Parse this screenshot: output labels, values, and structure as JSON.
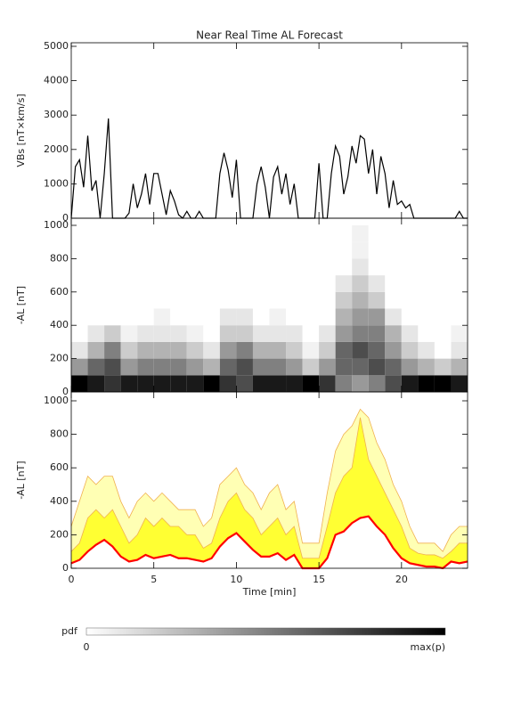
{
  "chart_data": [
    {
      "type": "line",
      "title": "Near Real Time AL Forecast",
      "ylabel": "VBs [nT×km/s]",
      "xlim": [
        0,
        24
      ],
      "xticks": [
        0,
        5,
        10,
        15,
        20
      ],
      "ylim": [
        0,
        5000
      ],
      "yticks": [
        0,
        1000,
        2000,
        3000,
        4000,
        5000
      ],
      "x": [
        0,
        0.25,
        0.5,
        0.75,
        1,
        1.25,
        1.5,
        1.75,
        2,
        2.25,
        2.5,
        2.75,
        3,
        3.25,
        3.5,
        3.75,
        4,
        4.25,
        4.5,
        4.75,
        5,
        5.25,
        5.5,
        5.75,
        6,
        6.25,
        6.5,
        6.75,
        7,
        7.25,
        7.5,
        7.75,
        8,
        8.25,
        8.5,
        8.75,
        9,
        9.25,
        9.5,
        9.75,
        10,
        10.25,
        10.5,
        10.75,
        11,
        11.25,
        11.5,
        11.75,
        12,
        12.25,
        12.5,
        12.75,
        13,
        13.25,
        13.5,
        13.75,
        14,
        14.25,
        14.5,
        14.75,
        15,
        15.25,
        15.5,
        15.75,
        16,
        16.25,
        16.5,
        16.75,
        17,
        17.25,
        17.5,
        17.75,
        18,
        18.25,
        18.5,
        18.75,
        19,
        19.25,
        19.5,
        19.75,
        20,
        20.25,
        20.5,
        20.75,
        21,
        21.25,
        21.5,
        21.75,
        22,
        22.25,
        22.5,
        22.75,
        23,
        23.25,
        23.5,
        23.75,
        24
      ],
      "series": [
        {
          "color": "#000000",
          "values": [
            0,
            1500,
            1700,
            900,
            2400,
            800,
            1100,
            0,
            1300,
            2900,
            0,
            0,
            0,
            0,
            150,
            1000,
            300,
            700,
            1300,
            400,
            1300,
            1300,
            700,
            100,
            800,
            500,
            100,
            0,
            200,
            0,
            0,
            200,
            0,
            0,
            0,
            0,
            1300,
            1900,
            1400,
            600,
            1700,
            0,
            0,
            0,
            0,
            1000,
            1500,
            900,
            0,
            1200,
            1500,
            700,
            1300,
            400,
            1000,
            0,
            0,
            0,
            0,
            0,
            1600,
            0,
            0,
            1300,
            2100,
            1800,
            700,
            1200,
            2100,
            1600,
            2400,
            2300,
            1300,
            2000,
            700,
            1800,
            1300,
            300,
            1100,
            400,
            500,
            300,
            400,
            0,
            0,
            0,
            0,
            0,
            0,
            0,
            0,
            0,
            0,
            0,
            200,
            0,
            0
          ]
        }
      ]
    },
    {
      "type": "heatmap",
      "ylabel": "-AL [nT]",
      "xlim": [
        0,
        24
      ],
      "xticks": [
        0,
        5,
        10,
        15,
        20
      ],
      "ylim": [
        0,
        1000
      ],
      "yticks": [
        0,
        200,
        400,
        600,
        800,
        1000
      ],
      "x_bins": [
        0,
        1,
        2,
        3,
        4,
        5,
        6,
        7,
        8,
        9,
        10,
        11,
        12,
        13,
        14,
        15,
        16,
        17,
        18,
        19,
        20,
        21,
        22,
        23,
        24
      ],
      "y_bins": [
        0,
        100,
        200,
        300,
        400,
        500,
        600,
        700,
        800,
        900,
        1000
      ],
      "z": [
        [
          1,
          0.4,
          0.1,
          0,
          0,
          0,
          0,
          0,
          0,
          0
        ],
        [
          0.9,
          0.6,
          0.3,
          0.1,
          0,
          0,
          0,
          0,
          0,
          0
        ],
        [
          0.8,
          0.7,
          0.5,
          0.2,
          0,
          0,
          0,
          0,
          0,
          0
        ],
        [
          0.9,
          0.4,
          0.2,
          0.05,
          0,
          0,
          0,
          0,
          0,
          0
        ],
        [
          0.9,
          0.5,
          0.3,
          0.1,
          0,
          0,
          0,
          0,
          0,
          0
        ],
        [
          0.9,
          0.5,
          0.3,
          0.1,
          0.05,
          0,
          0,
          0,
          0,
          0
        ],
        [
          0.9,
          0.5,
          0.3,
          0.1,
          0,
          0,
          0,
          0,
          0,
          0
        ],
        [
          0.9,
          0.4,
          0.2,
          0.05,
          0,
          0,
          0,
          0,
          0,
          0
        ],
        [
          1,
          0.3,
          0.1,
          0,
          0,
          0,
          0,
          0,
          0,
          0
        ],
        [
          0.8,
          0.6,
          0.4,
          0.2,
          0.1,
          0,
          0,
          0,
          0,
          0
        ],
        [
          0.7,
          0.7,
          0.5,
          0.2,
          0.1,
          0,
          0,
          0,
          0,
          0
        ],
        [
          0.9,
          0.5,
          0.3,
          0.1,
          0,
          0,
          0,
          0,
          0,
          0
        ],
        [
          0.9,
          0.5,
          0.3,
          0.1,
          0.05,
          0,
          0,
          0,
          0,
          0
        ],
        [
          0.9,
          0.4,
          0.2,
          0.1,
          0,
          0,
          0,
          0,
          0,
          0
        ],
        [
          1,
          0.2,
          0.05,
          0,
          0,
          0,
          0,
          0,
          0,
          0
        ],
        [
          0.8,
          0.4,
          0.2,
          0.1,
          0,
          0,
          0,
          0,
          0,
          0
        ],
        [
          0.5,
          0.6,
          0.6,
          0.4,
          0.3,
          0.2,
          0.1,
          0,
          0,
          0
        ],
        [
          0.4,
          0.6,
          0.7,
          0.5,
          0.4,
          0.3,
          0.2,
          0.1,
          0.05,
          0.05
        ],
        [
          0.5,
          0.7,
          0.6,
          0.5,
          0.4,
          0.2,
          0.1,
          0,
          0,
          0
        ],
        [
          0.7,
          0.6,
          0.4,
          0.3,
          0.1,
          0,
          0,
          0,
          0,
          0
        ],
        [
          0.9,
          0.4,
          0.2,
          0.1,
          0,
          0,
          0,
          0,
          0,
          0
        ],
        [
          1,
          0.3,
          0.1,
          0,
          0,
          0,
          0,
          0,
          0,
          0
        ],
        [
          1,
          0.2,
          0,
          0,
          0,
          0,
          0,
          0,
          0,
          0
        ],
        [
          0.9,
          0.3,
          0.1,
          0.05,
          0,
          0,
          0,
          0,
          0,
          0
        ]
      ]
    },
    {
      "type": "band",
      "ylabel": "-AL [nT]",
      "xlabel": "Time [min]",
      "xlim": [
        0,
        24
      ],
      "xticks": [
        0,
        5,
        10,
        15,
        20
      ],
      "ylim": [
        0,
        1000
      ],
      "yticks": [
        0,
        200,
        400,
        600,
        800,
        1000
      ],
      "x": [
        0,
        0.5,
        1,
        1.5,
        2,
        2.5,
        3,
        3.5,
        4,
        4.5,
        5,
        5.5,
        6,
        6.5,
        7,
        7.5,
        8,
        8.5,
        9,
        9.5,
        10,
        10.5,
        11,
        11.5,
        12,
        12.5,
        13,
        13.5,
        14,
        14.5,
        15,
        15.5,
        16,
        16.5,
        17,
        17.5,
        18,
        18.5,
        19,
        19.5,
        20,
        20.5,
        21,
        21.5,
        22,
        22.5,
        23,
        23.5,
        24
      ],
      "series": [
        {
          "color": "#f0b050",
          "fill": "#ffffb4",
          "values": [
            250,
            400,
            550,
            500,
            550,
            550,
            400,
            300,
            400,
            450,
            400,
            450,
            400,
            350,
            350,
            350,
            250,
            300,
            500,
            550,
            600,
            500,
            450,
            350,
            450,
            500,
            350,
            400,
            150,
            150,
            150,
            450,
            700,
            800,
            850,
            950,
            900,
            750,
            650,
            500,
            400,
            250,
            150,
            150,
            150,
            100,
            200,
            250,
            250
          ]
        },
        {
          "color": "#f0b050",
          "fill": "#ffff33",
          "values": [
            100,
            150,
            300,
            350,
            300,
            350,
            250,
            150,
            200,
            300,
            250,
            300,
            250,
            250,
            200,
            200,
            120,
            150,
            300,
            400,
            450,
            350,
            300,
            200,
            250,
            300,
            200,
            250,
            60,
            60,
            60,
            250,
            450,
            550,
            600,
            900,
            650,
            550,
            450,
            350,
            250,
            120,
            90,
            80,
            80,
            60,
            100,
            150,
            150
          ]
        },
        {
          "color": "#ff0000",
          "values": [
            30,
            50,
            100,
            140,
            170,
            130,
            70,
            40,
            50,
            80,
            60,
            70,
            80,
            60,
            60,
            50,
            40,
            60,
            130,
            180,
            210,
            160,
            110,
            70,
            70,
            90,
            50,
            80,
            0,
            0,
            0,
            60,
            200,
            220,
            270,
            300,
            310,
            250,
            200,
            120,
            60,
            30,
            20,
            10,
            10,
            0,
            40,
            30,
            40
          ]
        }
      ]
    }
  ],
  "colorbar": {
    "label": "pdf",
    "min_label": "0",
    "max_label": "max(p)"
  }
}
